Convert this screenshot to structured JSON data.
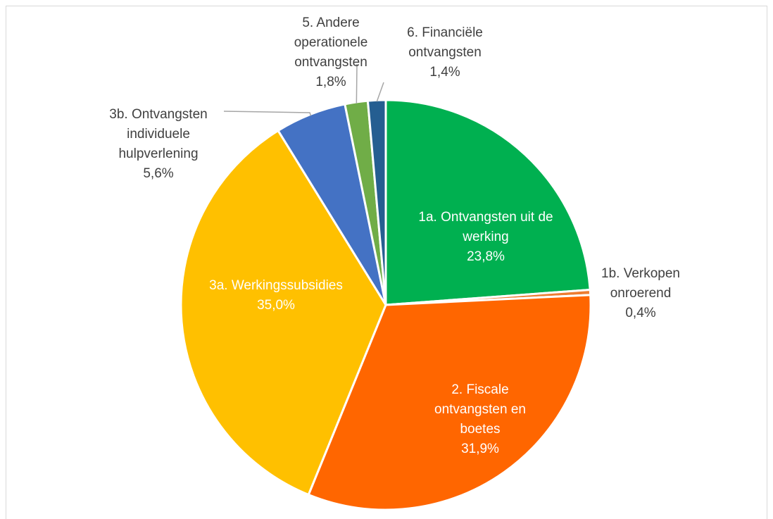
{
  "chart_data": {
    "type": "pie",
    "categories": [
      "1a. Ontvangsten uit de werking",
      "1b. Verkopen onroerend",
      "2. Fiscale ontvangsten en boetes",
      "3a. Werkingssubsidies",
      "3b. Ontvangsten individuele hulpverlening",
      "5. Andere operationele ontvangsten",
      "6. Financiële ontvangsten"
    ],
    "values": [
      23.8,
      0.4,
      31.9,
      35.0,
      5.6,
      1.8,
      1.4
    ],
    "value_labels": [
      "23,8%",
      "0,4%",
      "31,9%",
      "35,0%",
      "5,6%",
      "1,8%",
      "1,4%"
    ],
    "colors": [
      "#00b050",
      "#ed7d31",
      "#ff6600",
      "#ffc000",
      "#4472c4",
      "#70ad47",
      "#255e91"
    ]
  }
}
